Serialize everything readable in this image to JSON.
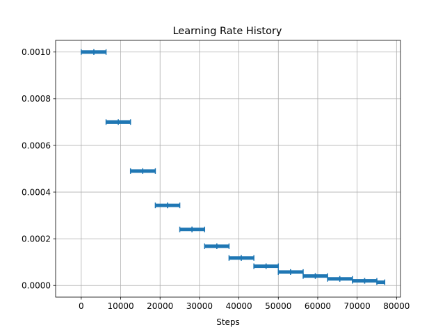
{
  "chart_data": {
    "type": "scatter",
    "title": "Learning Rate History",
    "xlabel": "Steps",
    "ylabel": "",
    "xlim": [
      -6500,
      81000
    ],
    "ylim": [
      -5e-05,
      0.00105
    ],
    "xticks": [
      0,
      10000,
      20000,
      30000,
      40000,
      50000,
      60000,
      70000,
      80000
    ],
    "xtick_labels": [
      "0",
      "10000",
      "20000",
      "30000",
      "40000",
      "50000",
      "60000",
      "70000",
      "80000"
    ],
    "yticks": [
      0.0,
      0.0002,
      0.0004,
      0.0006,
      0.0008,
      0.001
    ],
    "ytick_labels": [
      "0.0000",
      "0.0002",
      "0.0004",
      "0.0006",
      "0.0008",
      "0.0010"
    ],
    "grid": true,
    "marker": "+",
    "color": "#1f77b4",
    "series": [
      {
        "segments": [
          {
            "x_start": 0,
            "x_end": 3200,
            "lr": 0.001
          },
          {
            "x_start": 3200,
            "x_end": 6300,
            "lr": 0.001
          },
          {
            "x_start": 6300,
            "x_end": 9400,
            "lr": 0.0007
          },
          {
            "x_start": 9400,
            "x_end": 12500,
            "lr": 0.0007
          },
          {
            "x_start": 12500,
            "x_end": 15600,
            "lr": 0.00049
          },
          {
            "x_start": 15600,
            "x_end": 18800,
            "lr": 0.00049
          },
          {
            "x_start": 18800,
            "x_end": 21900,
            "lr": 0.000343
          },
          {
            "x_start": 21900,
            "x_end": 25000,
            "lr": 0.000343
          },
          {
            "x_start": 25000,
            "x_end": 28100,
            "lr": 0.00024
          },
          {
            "x_start": 28100,
            "x_end": 31300,
            "lr": 0.00024
          },
          {
            "x_start": 31300,
            "x_end": 34400,
            "lr": 0.000168
          },
          {
            "x_start": 34400,
            "x_end": 37500,
            "lr": 0.000168
          },
          {
            "x_start": 37500,
            "x_end": 40600,
            "lr": 0.0001176
          },
          {
            "x_start": 40600,
            "x_end": 43800,
            "lr": 0.0001176
          },
          {
            "x_start": 43800,
            "x_end": 46900,
            "lr": 8.24e-05
          },
          {
            "x_start": 46900,
            "x_end": 50000,
            "lr": 8.24e-05
          },
          {
            "x_start": 50000,
            "x_end": 53100,
            "lr": 5.76e-05
          },
          {
            "x_start": 53100,
            "x_end": 56300,
            "lr": 5.76e-05
          },
          {
            "x_start": 56300,
            "x_end": 59400,
            "lr": 4.04e-05
          },
          {
            "x_start": 59400,
            "x_end": 62500,
            "lr": 4.04e-05
          },
          {
            "x_start": 62500,
            "x_end": 65600,
            "lr": 2.82e-05
          },
          {
            "x_start": 65600,
            "x_end": 68800,
            "lr": 2.82e-05
          },
          {
            "x_start": 68800,
            "x_end": 71900,
            "lr": 1.98e-05
          },
          {
            "x_start": 71900,
            "x_end": 75000,
            "lr": 1.98e-05
          },
          {
            "x_start": 75000,
            "x_end": 77000,
            "lr": 1.38e-05
          }
        ]
      }
    ]
  }
}
